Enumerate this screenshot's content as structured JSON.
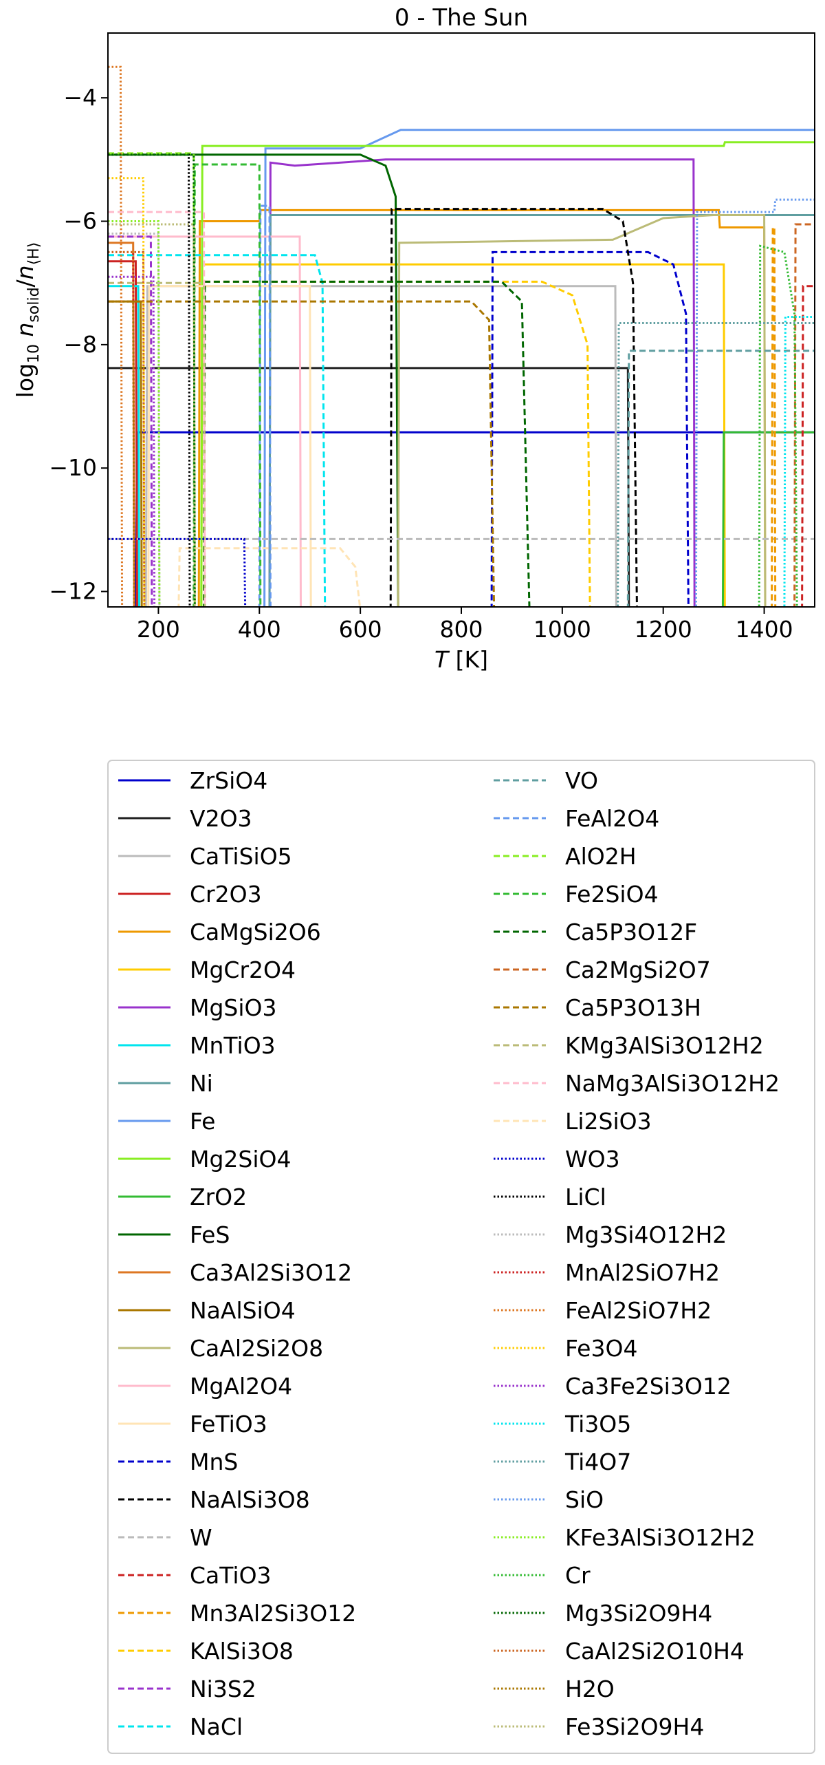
{
  "chart_data": {
    "type": "line",
    "title": "0 - The Sun",
    "xlabel_italic": "T",
    "xlabel_unit": " [K]",
    "ylabel_prefix": "log",
    "ylabel_sub1": "10",
    "ylabel_n1": " n",
    "ylabel_sub2": "solid",
    "ylabel_slash": "/",
    "ylabel_n2": "n",
    "ylabel_sub3": "⟨H⟩",
    "xlim": [
      100,
      1500
    ],
    "ylim": [
      -12.25,
      -2.95
    ],
    "xticks": [
      200,
      400,
      600,
      800,
      1000,
      1200,
      1400
    ],
    "xtick_labels": [
      "200",
      "400",
      "600",
      "800",
      "1000",
      "1200",
      "1400"
    ],
    "yticks": [
      -12,
      -10,
      -8,
      -6,
      -4
    ],
    "ytick_labels": [
      "−12",
      "−10",
      "−8",
      "−6",
      "−4"
    ],
    "legend_position": "below",
    "series": [
      {
        "name": "ZrSiO4",
        "color": "#0000cc",
        "style": "solid",
        "points": [
          [
            155,
            -12.3
          ],
          [
            158,
            -9.42
          ],
          [
            1500,
            -9.42
          ]
        ]
      },
      {
        "name": "V2O3",
        "color": "#222222",
        "style": "solid",
        "points": [
          [
            100,
            -8.38
          ],
          [
            1130,
            -8.38
          ],
          [
            1132,
            -12.3
          ]
        ]
      },
      {
        "name": "CaTiSiO5",
        "color": "#bbbbbb",
        "style": "solid",
        "points": [
          [
            175,
            -12.3
          ],
          [
            178,
            -7.05
          ],
          [
            1105,
            -7.05
          ],
          [
            1107,
            -12.3
          ]
        ]
      },
      {
        "name": "Cr2O3",
        "color": "#cc2222",
        "style": "solid",
        "points": [
          [
            100,
            -6.65
          ],
          [
            155,
            -6.65
          ],
          [
            158,
            -12.3
          ]
        ]
      },
      {
        "name": "CaMgSi2O6",
        "color": "#ee9900",
        "style": "solid",
        "points": [
          [
            280,
            -12.3
          ],
          [
            282,
            -6.0
          ],
          [
            400,
            -6.0
          ],
          [
            402,
            -5.82
          ],
          [
            1310,
            -5.82
          ],
          [
            1312,
            -6.1
          ],
          [
            1400,
            -6.1
          ],
          [
            1402,
            -12.3
          ]
        ]
      },
      {
        "name": "MgCr2O4",
        "color": "#ffcc00",
        "style": "solid",
        "points": [
          [
            285,
            -12.3
          ],
          [
            287,
            -6.7
          ],
          [
            1320,
            -6.7
          ],
          [
            1322,
            -12.3
          ]
        ]
      },
      {
        "name": "MgSiO3",
        "color": "#9933cc",
        "style": "solid",
        "points": [
          [
            420,
            -12.3
          ],
          [
            422,
            -5.05
          ],
          [
            470,
            -5.1
          ],
          [
            650,
            -5.0
          ],
          [
            1260,
            -5.0
          ],
          [
            1262,
            -12.3
          ]
        ]
      },
      {
        "name": "MnTiO3",
        "color": "#00e5ee",
        "style": "solid",
        "points": [
          [
            100,
            -7.05
          ],
          [
            160,
            -7.05
          ],
          [
            162,
            -12.3
          ]
        ]
      },
      {
        "name": "Ni",
        "color": "#5f9ea0",
        "style": "solid",
        "points": [
          [
            420,
            -12.3
          ],
          [
            422,
            -5.9
          ],
          [
            1500,
            -5.9
          ]
        ]
      },
      {
        "name": "Fe",
        "color": "#6699ee",
        "style": "solid",
        "points": [
          [
            410,
            -12.3
          ],
          [
            412,
            -4.82
          ],
          [
            600,
            -4.82
          ],
          [
            680,
            -4.52
          ],
          [
            1500,
            -4.52
          ]
        ]
      },
      {
        "name": "Mg2SiO4",
        "color": "#88ee22",
        "style": "solid",
        "points": [
          [
            285,
            -12.3
          ],
          [
            287,
            -4.78
          ],
          [
            1320,
            -4.78
          ],
          [
            1322,
            -4.72
          ],
          [
            1500,
            -4.72
          ]
        ]
      },
      {
        "name": "ZrO2",
        "color": "#33bb33",
        "style": "solid",
        "points": [
          [
            1318,
            -12.3
          ],
          [
            1320,
            -9.42
          ],
          [
            1500,
            -9.42
          ]
        ]
      },
      {
        "name": "FeS",
        "color": "#006600",
        "style": "solid",
        "points": [
          [
            100,
            -4.92
          ],
          [
            600,
            -4.92
          ],
          [
            650,
            -5.1
          ],
          [
            670,
            -5.6
          ],
          [
            675,
            -12.3
          ]
        ]
      },
      {
        "name": "Ca3Al2Si3O12",
        "color": "#dd7722",
        "style": "solid",
        "points": [
          [
            100,
            -6.35
          ],
          [
            150,
            -6.35
          ],
          [
            152,
            -12.3
          ]
        ]
      },
      {
        "name": "NaAlSiO4",
        "color": "#aa7700",
        "style": "solid",
        "points": [
          [
            100,
            -7.3
          ],
          [
            165,
            -7.3
          ],
          [
            167,
            -12.3
          ]
        ]
      },
      {
        "name": "CaAl2Si2O8",
        "color": "#bbbb77",
        "style": "solid",
        "points": [
          [
            675,
            -12.3
          ],
          [
            677,
            -6.35
          ],
          [
            1100,
            -6.3
          ],
          [
            1200,
            -5.95
          ],
          [
            1300,
            -5.9
          ],
          [
            1400,
            -5.9
          ],
          [
            1402,
            -12.3
          ]
        ]
      },
      {
        "name": "MgAl2O4",
        "color": "#ffbbcc",
        "style": "solid",
        "points": [
          [
            100,
            -6.25
          ],
          [
            480,
            -6.25
          ],
          [
            482,
            -12.3
          ]
        ]
      },
      {
        "name": "FeTiO3",
        "color": "#ffe4b5",
        "style": "solid",
        "points": [
          [
            180,
            -12.3
          ],
          [
            182,
            -7.05
          ],
          [
            500,
            -7.05
          ],
          [
            502,
            -12.3
          ]
        ]
      },
      {
        "name": "MnS",
        "color": "#0000cc",
        "style": "dashed",
        "points": [
          [
            860,
            -12.3
          ],
          [
            862,
            -6.5
          ],
          [
            1170,
            -6.5
          ],
          [
            1220,
            -6.7
          ],
          [
            1245,
            -7.5
          ],
          [
            1250,
            -12.3
          ]
        ]
      },
      {
        "name": "NaAlSi3O8",
        "color": "#000000",
        "style": "dashed",
        "points": [
          [
            660,
            -12.3
          ],
          [
            662,
            -5.8
          ],
          [
            1080,
            -5.8
          ],
          [
            1120,
            -6.0
          ],
          [
            1140,
            -7.0
          ],
          [
            1148,
            -12.3
          ]
        ]
      },
      {
        "name": "W",
        "color": "#bbbbbb",
        "style": "dashed",
        "points": [
          [
            100,
            -11.15
          ],
          [
            1500,
            -11.15
          ]
        ]
      },
      {
        "name": "CaTiO3",
        "color": "#cc2222",
        "style": "dashed",
        "points": [
          [
            1475,
            -12.3
          ],
          [
            1477,
            -7.05
          ],
          [
            1500,
            -7.05
          ]
        ]
      },
      {
        "name": "Mn3Al2Si3O12",
        "color": "#ee9900",
        "style": "dashed",
        "points": [
          [
            1415,
            -12.3
          ],
          [
            1417,
            -6.1
          ],
          [
            1420,
            -6.1
          ],
          [
            1422,
            -12.3
          ]
        ]
      },
      {
        "name": "KAlSi3O8",
        "color": "#ffcc00",
        "style": "dashed",
        "points": [
          [
            290,
            -12.3
          ],
          [
            292,
            -6.98
          ],
          [
            960,
            -6.98
          ],
          [
            1020,
            -7.2
          ],
          [
            1050,
            -8.0
          ],
          [
            1055,
            -12.3
          ]
        ]
      },
      {
        "name": "Ni3S2",
        "color": "#9933cc",
        "style": "dashed",
        "points": [
          [
            100,
            -6.25
          ],
          [
            185,
            -6.25
          ],
          [
            187,
            -12.3
          ]
        ]
      },
      {
        "name": "NaCl",
        "color": "#00e5ee",
        "style": "dashed",
        "points": [
          [
            100,
            -6.55
          ],
          [
            510,
            -6.55
          ],
          [
            525,
            -7.0
          ],
          [
            530,
            -12.3
          ]
        ]
      },
      {
        "name": "VO",
        "color": "#5f9ea0",
        "style": "dashed",
        "points": [
          [
            1130,
            -12.3
          ],
          [
            1132,
            -8.1
          ],
          [
            1500,
            -8.1
          ]
        ]
      },
      {
        "name": "FeAl2O4",
        "color": "#6699ee",
        "style": "dashed",
        "points": [
          [
            400,
            -12.3
          ],
          [
            402,
            -5.75
          ],
          [
            420,
            -5.75
          ],
          [
            422,
            -12.3
          ]
        ]
      },
      {
        "name": "AlO2H",
        "color": "#88ee22",
        "style": "dashed",
        "points": [
          [
            100,
            -4.9
          ],
          [
            270,
            -4.9
          ],
          [
            272,
            -12.3
          ]
        ]
      },
      {
        "name": "Fe2SiO4",
        "color": "#33bb33",
        "style": "dashed",
        "points": [
          [
            270,
            -12.3
          ],
          [
            272,
            -5.08
          ],
          [
            400,
            -5.08
          ],
          [
            402,
            -12.3
          ]
        ]
      },
      {
        "name": "Ca5P3O12F",
        "color": "#006600",
        "style": "dashed",
        "points": [
          [
            290,
            -12.3
          ],
          [
            292,
            -6.98
          ],
          [
            880,
            -6.98
          ],
          [
            920,
            -7.3
          ],
          [
            935,
            -12.3
          ]
        ]
      },
      {
        "name": "Ca2MgSi2O7",
        "color": "#cc6622",
        "style": "dashed",
        "points": [
          [
            1460,
            -12.3
          ],
          [
            1462,
            -6.05
          ],
          [
            1500,
            -6.05
          ]
        ]
      },
      {
        "name": "Ca5P3O13H",
        "color": "#aa7700",
        "style": "dashed",
        "points": [
          [
            100,
            -7.3
          ],
          [
            820,
            -7.3
          ],
          [
            855,
            -7.6
          ],
          [
            865,
            -12.3
          ]
        ]
      },
      {
        "name": "KMg3AlSi3O12H2",
        "color": "#bbbb77",
        "style": "dashed",
        "points": [
          [
            100,
            -7.0
          ],
          [
            290,
            -7.0
          ],
          [
            292,
            -12.3
          ]
        ]
      },
      {
        "name": "NaMg3AlSi3O12H2",
        "color": "#ffbbcc",
        "style": "dashed",
        "points": [
          [
            100,
            -5.85
          ],
          [
            290,
            -5.85
          ],
          [
            292,
            -12.3
          ]
        ]
      },
      {
        "name": "Li2SiO3",
        "color": "#ffe4b5",
        "style": "dashed",
        "points": [
          [
            240,
            -12.3
          ],
          [
            242,
            -11.3
          ],
          [
            560,
            -11.3
          ],
          [
            590,
            -11.6
          ],
          [
            600,
            -12.3
          ]
        ]
      },
      {
        "name": "WO3",
        "color": "#0000cc",
        "style": "dotted",
        "points": [
          [
            100,
            -11.15
          ],
          [
            370,
            -11.15
          ],
          [
            372,
            -12.3
          ]
        ]
      },
      {
        "name": "LiCl",
        "color": "#000000",
        "style": "dotted",
        "points": [
          [
            100,
            -4.92
          ],
          [
            260,
            -4.92
          ],
          [
            262,
            -12.3
          ]
        ]
      },
      {
        "name": "Mg3Si4O12H2",
        "color": "#bbbbbb",
        "style": "dotted",
        "points": [
          [
            100,
            -6.2
          ],
          [
            200,
            -6.2
          ],
          [
            202,
            -12.3
          ]
        ]
      },
      {
        "name": "MnAl2SiO7H2",
        "color": "#cc2222",
        "style": "dotted",
        "points": [
          [
            100,
            -6.5
          ],
          [
            150,
            -6.5
          ],
          [
            152,
            -12.3
          ]
        ]
      },
      {
        "name": "FeAl2SiO7H2",
        "color": "#dd7722",
        "style": "dotted",
        "points": [
          [
            100,
            -3.5
          ],
          [
            125,
            -3.5
          ],
          [
            128,
            -12.3
          ]
        ]
      },
      {
        "name": "Fe3O4",
        "color": "#ffcc00",
        "style": "dotted",
        "points": [
          [
            100,
            -5.3
          ],
          [
            170,
            -5.3
          ],
          [
            172,
            -12.3
          ]
        ]
      },
      {
        "name": "Ca3Fe2Si3O12",
        "color": "#9933cc",
        "style": "dotted",
        "points": [
          [
            100,
            -6.9
          ],
          [
            190,
            -6.9
          ],
          [
            192,
            -12.3
          ]
        ]
      },
      {
        "name": "Ti3O5",
        "color": "#00e5ee",
        "style": "dotted",
        "points": [
          [
            1440,
            -12.3
          ],
          [
            1442,
            -7.55
          ],
          [
            1500,
            -7.55
          ]
        ]
      },
      {
        "name": "Ti4O7",
        "color": "#5f9ea0",
        "style": "dotted",
        "points": [
          [
            1110,
            -12.3
          ],
          [
            1112,
            -7.65
          ],
          [
            1500,
            -7.65
          ]
        ]
      },
      {
        "name": "SiO",
        "color": "#6699ee",
        "style": "dotted",
        "points": [
          [
            1265,
            -12.3
          ],
          [
            1267,
            -5.85
          ],
          [
            1420,
            -5.85
          ],
          [
            1422,
            -5.65
          ],
          [
            1500,
            -5.65
          ]
        ]
      },
      {
        "name": "KFe3AlSi3O12H2",
        "color": "#88ee22",
        "style": "dotted",
        "points": [
          [
            100,
            -6.0
          ],
          [
            200,
            -6.0
          ],
          [
            202,
            -12.3
          ]
        ]
      },
      {
        "name": "Cr",
        "color": "#33bb33",
        "style": "dotted",
        "points": [
          [
            1390,
            -12.3
          ],
          [
            1392,
            -6.4
          ],
          [
            1440,
            -6.5
          ],
          [
            1460,
            -7.5
          ],
          [
            1465,
            -12.3
          ]
        ]
      },
      {
        "name": "Mg3Si2O9H4",
        "color": "#006600",
        "style": "dotted",
        "points": [
          [
            100,
            -4.92
          ],
          [
            270,
            -4.92
          ],
          [
            272,
            -12.3
          ]
        ]
      },
      {
        "name": "CaAl2Si2O10H4",
        "color": "#cc6622",
        "style": "dotted",
        "points": [
          [
            100,
            -6.5
          ],
          [
            170,
            -6.5
          ],
          [
            172,
            -12.3
          ]
        ]
      },
      {
        "name": "H2O",
        "color": "#aa7700",
        "style": "dotted",
        "points": [
          [
            100,
            -7.3
          ],
          [
            150,
            -7.3
          ],
          [
            152,
            -12.3
          ]
        ]
      },
      {
        "name": "Fe3Si2O9H4",
        "color": "#bbbb77",
        "style": "dotted",
        "points": [
          [
            100,
            -6.05
          ],
          [
            270,
            -6.05
          ],
          [
            272,
            -12.3
          ]
        ]
      }
    ]
  }
}
